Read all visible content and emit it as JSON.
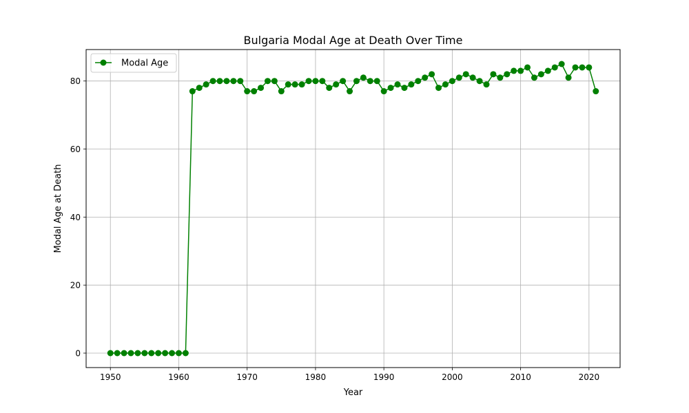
{
  "chart_data": {
    "type": "line",
    "title": "Bulgaria Modal Age at Death Over Time",
    "xlabel": "Year",
    "ylabel": "Modal Age at Death",
    "xlim": [
      1946.45,
      2024.55
    ],
    "ylim": [
      -4.25,
      89.25
    ],
    "xticks": [
      1950,
      1960,
      1970,
      1980,
      1990,
      2000,
      2010,
      2020
    ],
    "yticks": [
      0,
      20,
      40,
      60,
      80
    ],
    "grid": true,
    "legend": "top-left",
    "series": [
      {
        "name": "Modal Age",
        "color": "#008000",
        "marker": "circle",
        "x": [
          1950,
          1951,
          1952,
          1953,
          1954,
          1955,
          1956,
          1957,
          1958,
          1959,
          1960,
          1961,
          1962,
          1963,
          1964,
          1965,
          1966,
          1967,
          1968,
          1969,
          1970,
          1971,
          1972,
          1973,
          1974,
          1975,
          1976,
          1977,
          1978,
          1979,
          1980,
          1981,
          1982,
          1983,
          1984,
          1985,
          1986,
          1987,
          1988,
          1989,
          1990,
          1991,
          1992,
          1993,
          1994,
          1995,
          1996,
          1997,
          1998,
          1999,
          2000,
          2001,
          2002,
          2003,
          2004,
          2005,
          2006,
          2007,
          2008,
          2009,
          2010,
          2011,
          2012,
          2013,
          2014,
          2015,
          2016,
          2017,
          2018,
          2019,
          2020,
          2021
        ],
        "values": [
          0,
          0,
          0,
          0,
          0,
          0,
          0,
          0,
          0,
          0,
          0,
          0,
          77,
          78,
          79,
          80,
          80,
          80,
          80,
          80,
          77,
          77,
          78,
          80,
          80,
          77,
          79,
          79,
          79,
          80,
          80,
          80,
          78,
          79,
          80,
          77,
          80,
          81,
          80,
          80,
          77,
          78,
          79,
          78,
          79,
          80,
          81,
          82,
          78,
          79,
          80,
          81,
          82,
          81,
          80,
          79,
          82,
          81,
          82,
          83,
          83,
          84,
          81,
          82,
          83,
          84,
          85,
          81,
          84,
          84,
          84,
          77
        ]
      }
    ]
  }
}
